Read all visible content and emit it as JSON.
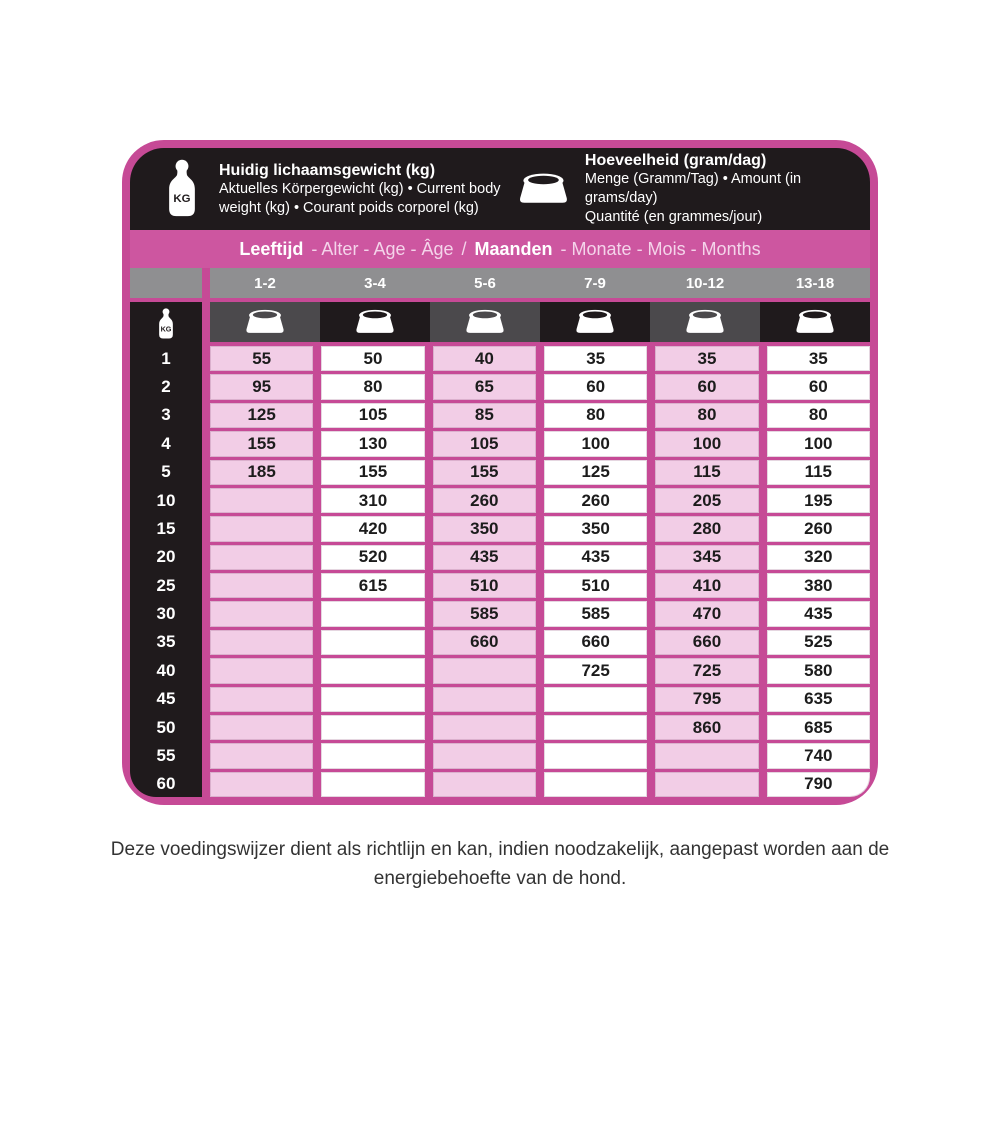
{
  "header": {
    "weight": {
      "icon": "kg-weight-icon",
      "title": "Huidig lichaamsgewicht (kg)",
      "line1": "Aktuelles Körpergewicht (kg) • Current body",
      "line2": "weight (kg) • Courant poids corporel (kg)"
    },
    "amount": {
      "icon": "dog-bowl-icon",
      "title": "Hoeveelheid (gram/dag)",
      "line1": "Menge (Gramm/Tag) • Amount (in grams/day)",
      "line2": "Quantité (en grammes/jour)"
    }
  },
  "age_band": {
    "label1_bold": "Leeftijd",
    "label1_rest": "- Alter - Age - Âge",
    "separator": "/",
    "label2_bold": "Maanden",
    "label2_rest": "- Monate - Mois - Months"
  },
  "kg_unit_label": "KG",
  "chart_data": {
    "type": "table",
    "row_header_unit": "kg",
    "columns": [
      "1-2",
      "3-4",
      "5-6",
      "7-9",
      "10-12",
      "13-18"
    ],
    "rows": [
      {
        "kg": "1",
        "values": [
          "55",
          "50",
          "40",
          "35",
          "35",
          "35"
        ]
      },
      {
        "kg": "2",
        "values": [
          "95",
          "80",
          "65",
          "60",
          "60",
          "60"
        ]
      },
      {
        "kg": "3",
        "values": [
          "125",
          "105",
          "85",
          "80",
          "80",
          "80"
        ]
      },
      {
        "kg": "4",
        "values": [
          "155",
          "130",
          "105",
          "100",
          "100",
          "100"
        ]
      },
      {
        "kg": "5",
        "values": [
          "185",
          "155",
          "155",
          "125",
          "115",
          "115"
        ]
      },
      {
        "kg": "10",
        "values": [
          "",
          "310",
          "260",
          "260",
          "205",
          "195"
        ]
      },
      {
        "kg": "15",
        "values": [
          "",
          "420",
          "350",
          "350",
          "280",
          "260"
        ]
      },
      {
        "kg": "20",
        "values": [
          "",
          "520",
          "435",
          "435",
          "345",
          "320"
        ]
      },
      {
        "kg": "25",
        "values": [
          "",
          "615",
          "510",
          "510",
          "410",
          "380"
        ]
      },
      {
        "kg": "30",
        "values": [
          "",
          "",
          "585",
          "585",
          "470",
          "435"
        ]
      },
      {
        "kg": "35",
        "values": [
          "",
          "",
          "660",
          "660",
          "660",
          "525"
        ]
      },
      {
        "kg": "40",
        "values": [
          "",
          "",
          "",
          "725",
          "725",
          "580"
        ]
      },
      {
        "kg": "45",
        "values": [
          "",
          "",
          "",
          "",
          "795",
          "635"
        ]
      },
      {
        "kg": "50",
        "values": [
          "",
          "",
          "",
          "",
          "860",
          "685"
        ]
      },
      {
        "kg": "55",
        "values": [
          "",
          "",
          "",
          "",
          "",
          "740"
        ]
      },
      {
        "kg": "60",
        "values": [
          "",
          "",
          "",
          "",
          "",
          "790"
        ]
      }
    ]
  },
  "caption": {
    "line1": "Deze voedingswijzer dient als richtlijn en kan, indien noodzakelijk, aangepast worden aan de",
    "line2": "energiebehoefte van de hond."
  },
  "colors": {
    "magenta": "#c64a96",
    "band_magenta": "#cd56a0",
    "band_light_text": "#f4d4ea",
    "pink_cell": "#f2cde6",
    "white_cell": "#ffffff",
    "gray_header": "#8f8f91",
    "dark_gray": "#4b494c",
    "black": "#1f1a1c",
    "text_dark": "#1c1c1c",
    "caption_text": "#333333"
  }
}
